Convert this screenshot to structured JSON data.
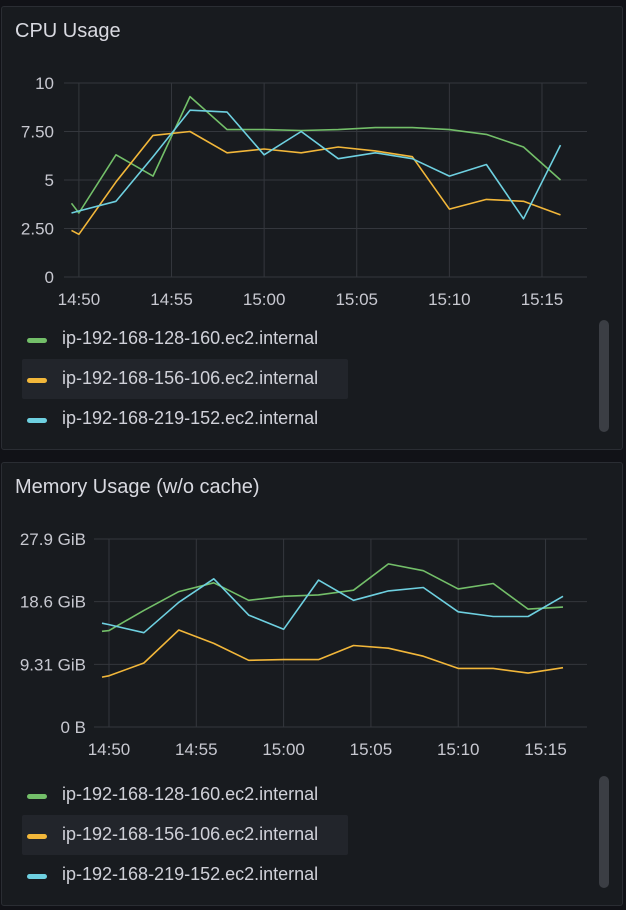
{
  "panels": [
    {
      "title": "CPU Usage",
      "y_ticks": [
        "0",
        "2.50",
        "5",
        "7.50",
        "10"
      ],
      "x_ticks": [
        "14:50",
        "14:55",
        "15:00",
        "15:05",
        "15:10",
        "15:15"
      ]
    },
    {
      "title": "Memory Usage (w/o cache)",
      "y_ticks": [
        "0 B",
        "9.31 GiB",
        "18.6 GiB",
        "27.9 GiB"
      ],
      "x_ticks": [
        "14:50",
        "14:55",
        "15:00",
        "15:05",
        "15:10",
        "15:15"
      ]
    }
  ],
  "legend": [
    {
      "label": "ip-192-168-128-160.ec2.internal",
      "color": "#73bf69"
    },
    {
      "label": "ip-192-168-156-106.ec2.internal",
      "color": "#f2b73a"
    },
    {
      "label": "ip-192-168-219-152.ec2.internal",
      "color": "#6ed0e0"
    }
  ],
  "chart_data": [
    {
      "type": "line",
      "title": "CPU Usage",
      "x": [
        "14:49.6",
        "14:50",
        "14:52",
        "14:54",
        "14:56",
        "14:58",
        "15:00",
        "15:02",
        "15:04",
        "15:06",
        "15:08",
        "15:10",
        "15:12",
        "15:14",
        "15:16"
      ],
      "ylim": [
        0,
        10
      ],
      "series": [
        {
          "name": "ip-192-168-128-160.ec2.internal",
          "values": [
            3.8,
            3.3,
            6.3,
            5.2,
            9.3,
            7.6,
            7.6,
            7.55,
            7.6,
            7.7,
            7.7,
            7.6,
            7.35,
            6.7,
            5.0
          ]
        },
        {
          "name": "ip-192-168-156-106.ec2.internal",
          "values": [
            2.4,
            2.2,
            4.9,
            7.3,
            7.5,
            6.4,
            6.6,
            6.4,
            6.7,
            6.5,
            6.2,
            3.5,
            4.0,
            3.9,
            3.2
          ]
        },
        {
          "name": "ip-192-168-219-152.ec2.internal",
          "values": [
            3.3,
            3.4,
            3.9,
            6.2,
            8.6,
            8.5,
            6.3,
            7.5,
            6.1,
            6.4,
            6.1,
            5.2,
            5.8,
            3.0,
            6.8
          ]
        }
      ]
    },
    {
      "type": "line",
      "title": "Memory Usage (w/o cache)",
      "x": [
        "14:49.6",
        "14:50",
        "14:52",
        "14:54",
        "14:56",
        "14:58",
        "15:00",
        "15:02",
        "15:04",
        "15:06",
        "15:08",
        "15:10",
        "15:12",
        "15:14",
        "15:16"
      ],
      "ylim": [
        0,
        27.9
      ],
      "ylabel": "GiB",
      "series": [
        {
          "name": "ip-192-168-128-160.ec2.internal",
          "values": [
            14.2,
            14.3,
            17.3,
            20.1,
            21.4,
            18.8,
            19.4,
            19.6,
            20.3,
            24.2,
            23.2,
            20.5,
            21.3,
            17.5,
            17.8
          ]
        },
        {
          "name": "ip-192-168-156-106.ec2.internal",
          "values": [
            7.4,
            7.6,
            9.5,
            14.4,
            12.4,
            9.9,
            10.0,
            10.0,
            12.1,
            11.7,
            10.5,
            8.7,
            8.7,
            8.0,
            8.8
          ]
        },
        {
          "name": "ip-192-168-219-152.ec2.internal",
          "values": [
            15.4,
            15.2,
            14.0,
            18.5,
            22.0,
            16.6,
            14.5,
            21.8,
            18.8,
            20.2,
            20.7,
            17.1,
            16.4,
            16.4,
            19.4
          ]
        }
      ]
    }
  ]
}
